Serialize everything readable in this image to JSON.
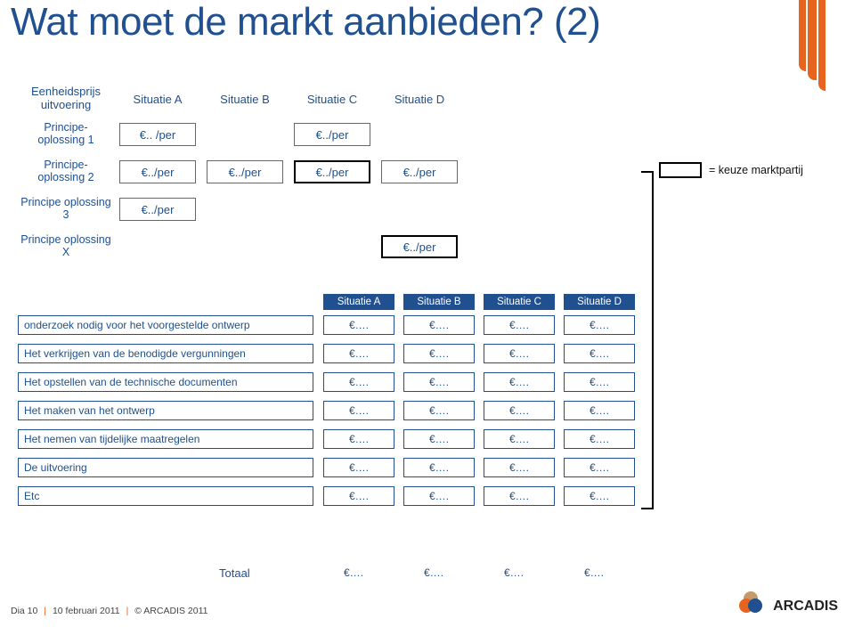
{
  "colors": {
    "brand_blue": "#205090",
    "brand_orange": "#e6641e",
    "text_dark": "#111111",
    "border_black": "#000000",
    "background": "#ffffff"
  },
  "title": "Wat moet de markt aanbieden? (2)",
  "top": {
    "header_left": "Eenheidsprijs uitvoering",
    "situations": [
      "Situatie A",
      "Situatie B",
      "Situatie C",
      "Situatie D"
    ],
    "rows": [
      {
        "label": "Principe-\noplossing 1",
        "cells": [
          "€.. /per",
          "",
          "€../per",
          ""
        ],
        "boxed": [
          true,
          false,
          true,
          false
        ],
        "thick": [
          false,
          false,
          false,
          false
        ]
      },
      {
        "label": "Principe-\noplossing 2",
        "cells": [
          "€../per",
          "€../per",
          "€../per",
          "€../per"
        ],
        "boxed": [
          true,
          true,
          true,
          true
        ],
        "thick": [
          false,
          false,
          true,
          false
        ]
      },
      {
        "label": "Principe oplossing 3",
        "cells": [
          "€../per",
          "",
          "",
          ""
        ],
        "boxed": [
          true,
          false,
          false,
          false
        ],
        "thick": [
          false,
          false,
          false,
          false
        ]
      },
      {
        "label": "Principe oplossing X",
        "cells": [
          "",
          "",
          "",
          "€../per"
        ],
        "boxed": [
          false,
          false,
          false,
          true
        ],
        "thick": [
          false,
          false,
          false,
          true
        ]
      }
    ]
  },
  "legend": "= keuze marktpartij",
  "lower": {
    "headers": [
      "Situatie A",
      "Situatie B",
      "Situatie C",
      "Situatie D"
    ],
    "rows": [
      "onderzoek nodig voor het voorgestelde ontwerp",
      "Het verkrijgen van de benodigde vergunningen",
      "Het opstellen van de technische documenten",
      "Het maken van het ontwerp",
      "Het nemen van tijdelijke maatregelen",
      "De uitvoering",
      "Etc"
    ],
    "cell_value": "€…."
  },
  "totals": {
    "label": "Totaal",
    "values": [
      "€….",
      "€….",
      "€….",
      "€…."
    ]
  },
  "footer": {
    "page": "Dia 10",
    "date": "10 februari 2011",
    "owner": "© ARCADIS 2011"
  },
  "logo_text": "ARCADIS"
}
